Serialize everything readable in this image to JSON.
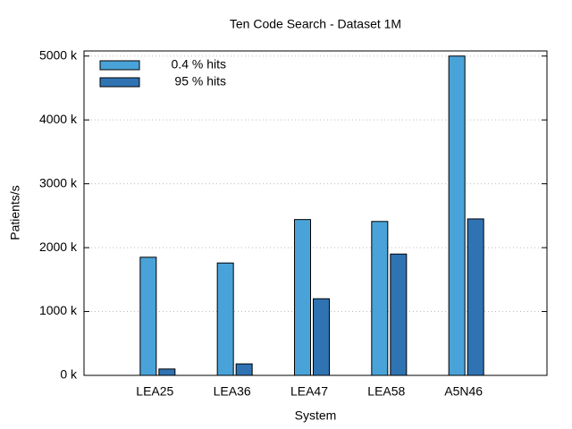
{
  "chart_data": {
    "type": "bar",
    "title": "Ten Code Search - Dataset 1M",
    "x_label": "System",
    "y_label": "Patients/s",
    "categories": [
      "LEA25",
      "LEA36",
      "LEA47",
      "LEA58",
      "A5N46"
    ],
    "series": [
      {
        "name": "0.4 % hits",
        "color": "#4aa3d8",
        "values": [
          1850,
          1760,
          2440,
          2410,
          5000
        ]
      },
      {
        "name": " 95 % hits",
        "color": "#2f73b3",
        "values": [
          100,
          180,
          1200,
          1900,
          2450
        ]
      }
    ],
    "ylim": [
      0,
      5080
    ],
    "yticks": [
      {
        "value": 0,
        "label": "0 k"
      },
      {
        "value": 1000,
        "label": "1000 k"
      },
      {
        "value": 2000,
        "label": "2000 k"
      },
      {
        "value": 3000,
        "label": "3000 k"
      },
      {
        "value": 4000,
        "label": "4000 k"
      },
      {
        "value": 5000,
        "label": "5000 k"
      }
    ],
    "grid": true,
    "legend": "top-left"
  }
}
